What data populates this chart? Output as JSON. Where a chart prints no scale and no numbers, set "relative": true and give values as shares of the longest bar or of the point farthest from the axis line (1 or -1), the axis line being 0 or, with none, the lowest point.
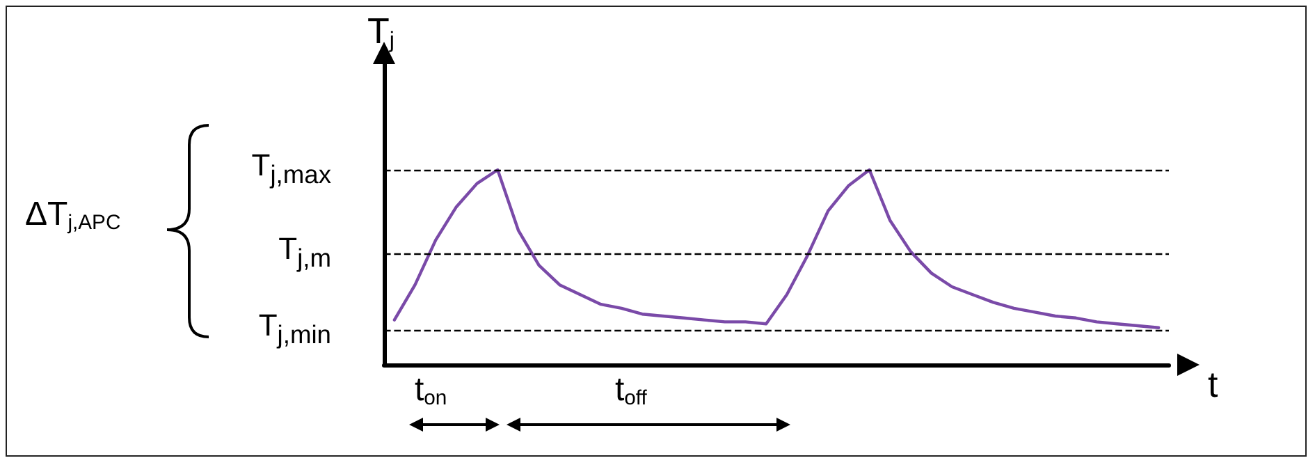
{
  "chart_data": {
    "type": "line",
    "relative": true,
    "xlabel": "t",
    "ylabel": "T$_{j}$",
    "categories": [
      null,
      null,
      null,
      null,
      null,
      null,
      null,
      null,
      null,
      null,
      null,
      null,
      null,
      null,
      null,
      null,
      null,
      null,
      null,
      null,
      null,
      null,
      null,
      null,
      null,
      null,
      null,
      null,
      null,
      null,
      null,
      null,
      null,
      null,
      null,
      null,
      null,
      null
    ],
    "series": [
      {
        "color": "#7a4aa8",
        "values": [
          0.23,
          0.41,
          0.64,
          0.81,
          0.93,
          1,
          0.69,
          0.51,
          0.41,
          0.36,
          0.31,
          0.29,
          0.26,
          0.25,
          0.24,
          0.23,
          0.22,
          0.22,
          0.21,
          0.36,
          0.56,
          0.79,
          0.92,
          1,
          0.74,
          0.58,
          0.47,
          0.4,
          0.36,
          0.32,
          0.29,
          0.27,
          0.25,
          0.24,
          0.22,
          0.21,
          0.2,
          0.19
        ]
      }
    ],
    "ref_lines": [
      {
        "axis": "y",
        "value": 1,
        "label": "T$_{j,max}$",
        "line_style": "dashed"
      },
      {
        "axis": "y",
        "value": 0.57,
        "label": "T$_{j,m}$",
        "line_style": "dashed"
      },
      {
        "axis": "y",
        "value": 0.18,
        "label": "T$_{j,min}$",
        "line_style": "dashed"
      }
    ],
    "annotations": [
      "t$_{on}$",
      "t$_{off}$",
      "ΔT$_{j,APC}$"
    ],
    "grid": false,
    "marker": "none",
    "line_style": "solid"
  }
}
